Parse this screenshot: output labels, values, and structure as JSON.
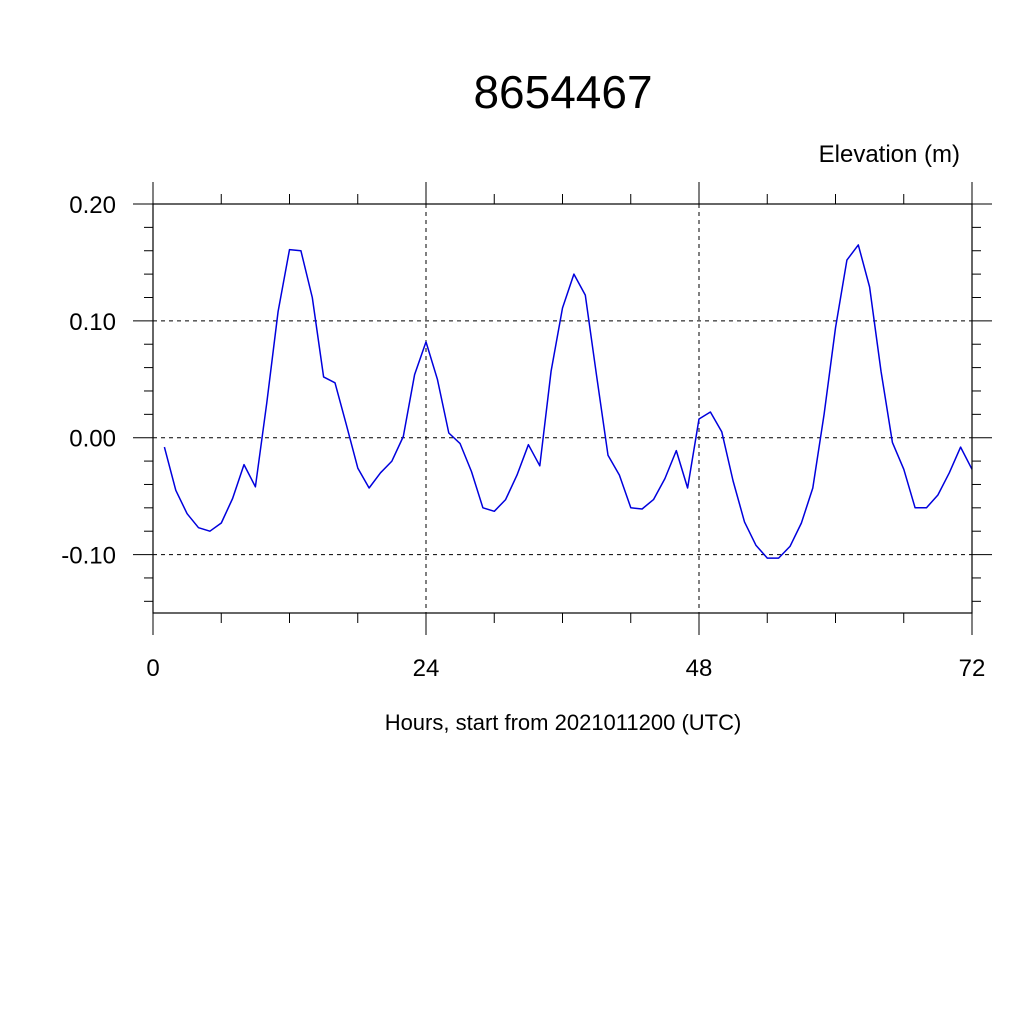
{
  "chart_data": {
    "type": "line",
    "title": "8654467",
    "ylabel": "Elevation (m)",
    "xlabel": "Hours, start from 2021011200 (UTC)",
    "xlim": [
      0,
      72
    ],
    "ylim": [
      -0.15,
      0.2
    ],
    "x_ticks": [
      0,
      24,
      48,
      72
    ],
    "x_tick_labels": [
      "0",
      "24",
      "48",
      "72"
    ],
    "y_ticks": [
      0.2,
      0.1,
      0.0,
      -0.1
    ],
    "y_tick_labels": [
      "0.20",
      "0.10",
      "0.00",
      "-0.10"
    ],
    "grid": true,
    "series": [
      {
        "color": "#0000dd",
        "x": [
          1,
          2,
          3,
          4,
          5,
          6,
          7,
          8,
          9,
          10,
          11,
          12,
          13,
          14,
          15,
          16,
          17,
          18,
          19,
          20,
          21,
          22,
          23,
          24,
          25,
          26,
          27,
          28,
          29,
          30,
          31,
          32,
          33,
          34,
          35,
          36,
          37,
          38,
          39,
          40,
          41,
          42,
          43,
          44,
          45,
          46,
          47,
          48,
          49,
          50,
          51,
          52,
          53,
          54,
          55,
          56,
          57,
          58,
          59,
          60,
          61,
          62,
          63,
          64,
          65,
          66,
          67,
          68,
          69,
          70,
          71,
          72
        ],
        "values": [
          -0.008,
          -0.045,
          -0.065,
          -0.077,
          -0.08,
          -0.073,
          -0.052,
          -0.023,
          -0.042,
          0.03,
          0.108,
          0.161,
          0.16,
          0.12,
          0.052,
          0.047,
          0.011,
          -0.026,
          -0.043,
          -0.03,
          -0.02,
          0.001,
          0.054,
          0.082,
          0.05,
          0.004,
          -0.005,
          -0.029,
          -0.06,
          -0.063,
          -0.053,
          -0.032,
          -0.006,
          -0.024,
          0.057,
          0.111,
          0.14,
          0.122,
          0.053,
          -0.015,
          -0.032,
          -0.06,
          -0.061,
          -0.053,
          -0.035,
          -0.011,
          -0.043,
          0.016,
          0.022,
          0.005,
          -0.037,
          -0.072,
          -0.092,
          -0.103,
          -0.103,
          -0.093,
          -0.073,
          -0.043,
          0.02,
          0.094,
          0.152,
          0.165,
          0.129,
          0.057,
          -0.004,
          -0.027,
          -0.06,
          -0.06,
          -0.049,
          -0.03,
          -0.008,
          -0.027
        ]
      }
    ]
  }
}
